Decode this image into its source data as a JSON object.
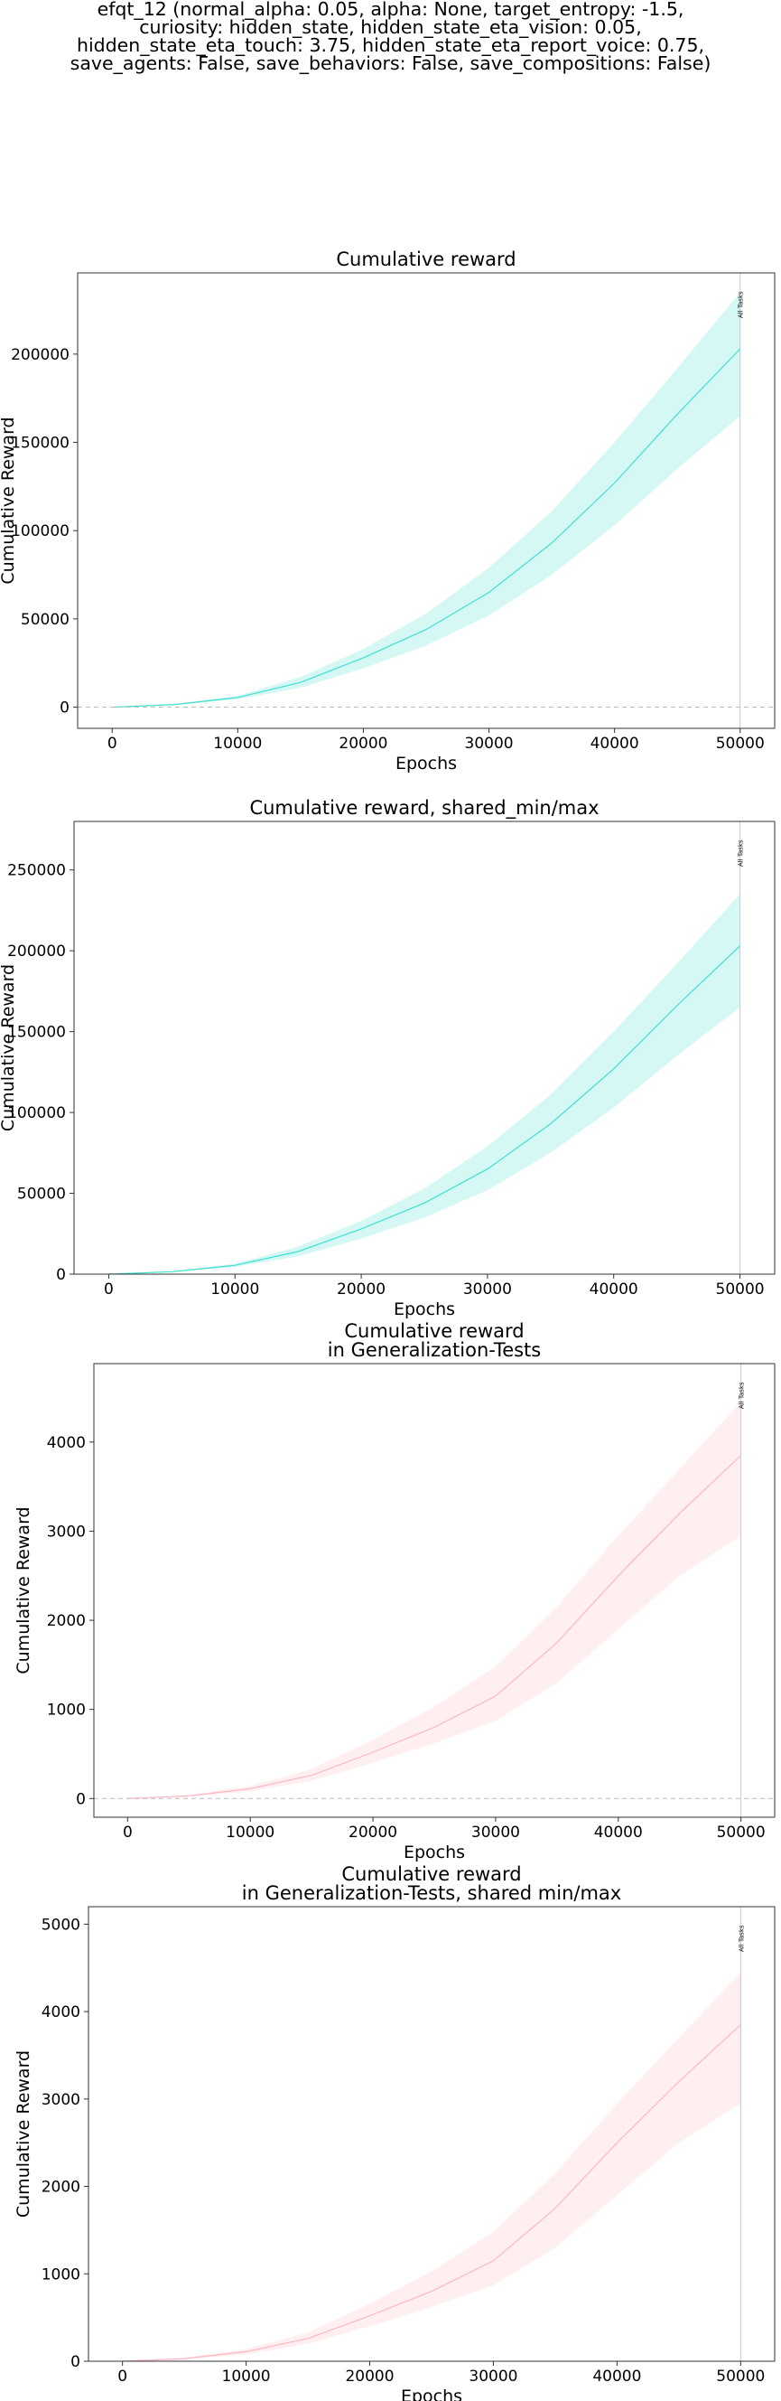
{
  "figure_title_lines": [
    "efqt_12 (normal_alpha: 0.05, alpha: None, target_entropy: -1.5,",
    "curiosity: hidden_state, hidden_state_eta_vision: 0.05,",
    "hidden_state_eta_touch: 3.75, hidden_state_eta_report_voice: 0.75,",
    "save_agents: False, save_behaviors: False, save_compositions: False)"
  ],
  "chart_data": [
    {
      "type": "line",
      "title": [
        "Cumulative reward"
      ],
      "xlabel": "Epochs",
      "ylabel": "Cumulative Reward",
      "xlim": [
        -2750,
        52750
      ],
      "ylim": [
        -12000,
        246000
      ],
      "xticks": [
        0,
        10000,
        20000,
        30000,
        40000,
        50000
      ],
      "yticks": [
        0,
        50000,
        100000,
        150000,
        200000
      ],
      "zero_line": true,
      "vline": {
        "x": 50000,
        "label": "All Tasks"
      },
      "series": [
        {
          "color": "#40e0d0",
          "x": [
            0,
            5000,
            10000,
            15000,
            20000,
            25000,
            30000,
            35000,
            40000,
            45000,
            50000
          ],
          "mean": [
            0,
            1500,
            5500,
            14000,
            28000,
            44000,
            65000,
            93000,
            127000,
            166000,
            203000
          ],
          "min": [
            0,
            1200,
            4500,
            11000,
            22000,
            35000,
            52000,
            75000,
            103000,
            135000,
            165000
          ],
          "max": [
            0,
            1800,
            6500,
            17000,
            33000,
            53000,
            79000,
            111000,
            150000,
            192000,
            235000
          ]
        }
      ]
    },
    {
      "type": "line",
      "title": [
        "Cumulative reward, shared_min/max"
      ],
      "xlabel": "Epochs",
      "ylabel": "Cumulative Reward",
      "xlim": [
        -2750,
        52750
      ],
      "ylim": [
        0,
        280000
      ],
      "xticks": [
        0,
        10000,
        20000,
        30000,
        40000,
        50000
      ],
      "yticks": [
        0,
        50000,
        100000,
        150000,
        200000,
        250000
      ],
      "zero_line": false,
      "vline": {
        "x": 50000,
        "label": "All Tasks"
      },
      "series": [
        {
          "color": "#40e0d0",
          "x": [
            0,
            5000,
            10000,
            15000,
            20000,
            25000,
            30000,
            35000,
            40000,
            45000,
            50000
          ],
          "mean": [
            0,
            1500,
            5500,
            14000,
            28000,
            44000,
            65000,
            93000,
            127000,
            166000,
            203000
          ],
          "min": [
            0,
            1200,
            4500,
            11000,
            22000,
            35000,
            52000,
            75000,
            103000,
            135000,
            165000
          ],
          "max": [
            0,
            1800,
            6500,
            17000,
            33000,
            53000,
            79000,
            111000,
            150000,
            192000,
            235000
          ]
        }
      ]
    },
    {
      "type": "line",
      "title": [
        "Cumulative reward",
        "in Generalization-Tests"
      ],
      "xlabel": "Epochs",
      "ylabel": "Cumulative Reward",
      "xlim": [
        -2750,
        52750
      ],
      "ylim": [
        -210,
        4880
      ],
      "xticks": [
        0,
        10000,
        20000,
        30000,
        40000,
        50000
      ],
      "yticks": [
        0,
        1000,
        2000,
        3000,
        4000
      ],
      "zero_line": true,
      "vline": {
        "x": 50000,
        "label": "All Tasks"
      },
      "series": [
        {
          "color": "#ffb6c1",
          "x": [
            0,
            5000,
            10000,
            15000,
            20000,
            25000,
            30000,
            35000,
            40000,
            45000,
            50000
          ],
          "mean": [
            0,
            30,
            110,
            260,
            520,
            800,
            1150,
            1750,
            2500,
            3200,
            3850
          ],
          "min": [
            0,
            20,
            80,
            200,
            400,
            620,
            870,
            1300,
            1900,
            2500,
            2950
          ],
          "max": [
            0,
            40,
            140,
            330,
            660,
            1030,
            1480,
            2150,
            2950,
            3700,
            4450
          ]
        }
      ]
    },
    {
      "type": "line",
      "title": [
        "Cumulative reward",
        "in Generalization-Tests, shared min/max"
      ],
      "xlabel": "Epochs",
      "ylabel": "Cumulative Reward",
      "xlim": [
        -2750,
        52750
      ],
      "ylim": [
        0,
        5200
      ],
      "xticks": [
        0,
        10000,
        20000,
        30000,
        40000,
        50000
      ],
      "yticks": [
        0,
        1000,
        2000,
        3000,
        4000,
        5000
      ],
      "zero_line": false,
      "vline": {
        "x": 50000,
        "label": "All Tasks"
      },
      "series": [
        {
          "color": "#ffb6c1",
          "x": [
            0,
            5000,
            10000,
            15000,
            20000,
            25000,
            30000,
            35000,
            40000,
            45000,
            50000
          ],
          "mean": [
            0,
            30,
            110,
            260,
            520,
            800,
            1150,
            1750,
            2500,
            3200,
            3850
          ],
          "min": [
            0,
            20,
            80,
            200,
            400,
            620,
            870,
            1300,
            1900,
            2500,
            2950
          ],
          "max": [
            0,
            40,
            140,
            330,
            660,
            1030,
            1480,
            2150,
            2950,
            3700,
            4450
          ]
        }
      ]
    }
  ]
}
